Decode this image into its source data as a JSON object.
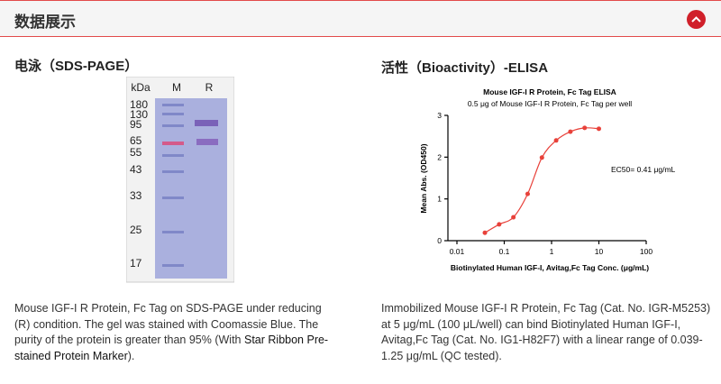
{
  "header": {
    "title": "数据展示"
  },
  "sds": {
    "title": "电泳（SDS-PAGE）",
    "gel": {
      "header": [
        "kDa",
        "M",
        "R"
      ],
      "markers": [
        "180",
        "130",
        "95",
        "65",
        "55",
        "43",
        "33",
        "25",
        "17"
      ]
    },
    "caption": [
      "Mouse IGF-I R Protein, Fc Tag on SDS-PAGE under reducing (R) condition. The gel was stained with Coomassie Blue. The purity of the protein is greater than 95% (With ",
      "Star Ribbon Pre-stained Protein Marker",
      ")."
    ]
  },
  "elisa": {
    "title": "活性（Bioactivity）-ELISA",
    "caption": "Immobilized Mouse IGF-I R Protein, Fc Tag (Cat. No. IGR-M5253) at 5 μg/mL (100 μL/well) can bind Biotinylated Human IGF-I, Avitag,Fc Tag (Cat. No. IG1-H82F7) with a linear range of 0.039-1.25 μg/mL (QC tested)."
  },
  "chart_data": {
    "type": "scatter",
    "title": "Mouse IGF-I R Protein, Fc Tag ELISA",
    "subtitle": "0.5 μg of Mouse IGF-I R Protein, Fc Tag per well",
    "x_label": "Biotinylated Human IGF-I, Avitag,Fc Tag Conc. (μg/mL)",
    "y_label": "Mean Abs. (OD450)",
    "annotation": "EC50= 0.41 μg/mL",
    "x": [
      0.039,
      0.078,
      0.156,
      0.3125,
      0.625,
      1.25,
      2.5,
      5,
      10
    ],
    "values": [
      0.19,
      0.39,
      0.56,
      1.12,
      1.99,
      2.4,
      2.61,
      2.7,
      2.68
    ],
    "color": "#e8413a",
    "xscale": "log",
    "xlim": [
      0.01,
      100
    ],
    "xticks": [
      0.01,
      0.1,
      1,
      10,
      100
    ],
    "ylim": [
      0,
      3
    ],
    "yticks": [
      0,
      1,
      2,
      3
    ]
  }
}
